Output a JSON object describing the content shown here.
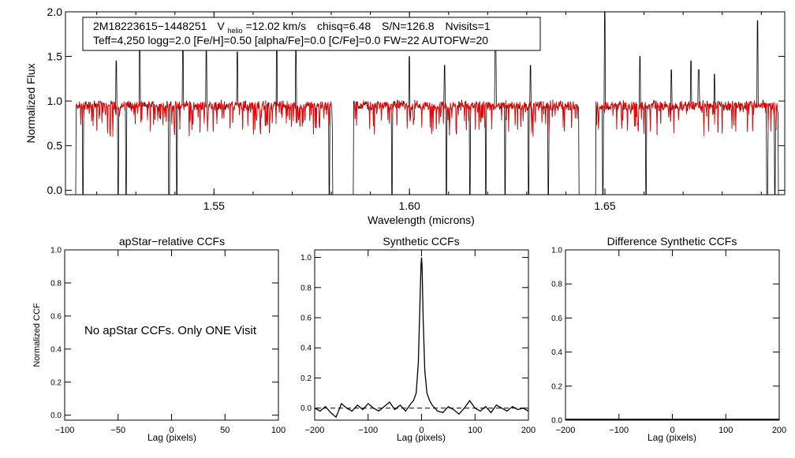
{
  "chart_data": [
    {
      "type": "line",
      "id": "spectrum",
      "xlabel": "Wavelength (microns)",
      "ylabel": "Normalized Flux",
      "xlim": [
        1.512,
        1.696
      ],
      "ylim": [
        -0.05,
        2.0
      ],
      "x_ticks": [
        1.55,
        1.6,
        1.65
      ],
      "x_tick_labels": [
        "1.55",
        "1.60",
        "1.65"
      ],
      "y_ticks": [
        0.0,
        0.5,
        1.0,
        1.5,
        2.0
      ],
      "y_tick_labels": [
        "0.0",
        "0.5",
        "1.0",
        "1.5",
        "2.0"
      ],
      "legend": {
        "star_id": "2M18223615−1448251",
        "v_label": "V",
        "v_sub": "helio",
        "v_value": "=12.02 km/s",
        "chisq": "chisq=6.48",
        "snr": "S/N=126.8",
        "nvisits": "Nvisits=1",
        "line2": "Teff=4,250 logg=2.0 [Fe/H]=0.50 [alpha/Fe]=0.0 [C/Fe]=0.0 FW=22 AUTOFW=20"
      },
      "chips": [
        [
          1.5145,
          1.5805
        ],
        [
          1.5855,
          1.6435
        ],
        [
          1.6475,
          1.6945
        ]
      ],
      "continuum": 0.95,
      "spikes_up": [
        1.525,
        1.531,
        1.542,
        1.548,
        1.556,
        1.566,
        1.571,
        1.6,
        1.609,
        1.622,
        1.631,
        1.65,
        1.659,
        1.667,
        1.672,
        1.674,
        1.678,
        1.689
      ],
      "spike_heights": [
        1.45,
        1.9,
        1.7,
        1.6,
        1.55,
        1.85,
        1.6,
        1.5,
        1.4,
        1.7,
        1.4,
        2.0,
        1.5,
        1.35,
        1.45,
        1.35,
        1.3,
        1.9
      ],
      "dips": [
        1.5165,
        1.5255,
        1.5275,
        1.5385,
        1.5405,
        1.5795,
        1.5955,
        1.6095,
        1.6155,
        1.6195,
        1.6245,
        1.6305,
        1.6355,
        1.6495,
        1.6605,
        1.6915,
        1.6935
      ],
      "series": [
        {
          "name": "observed",
          "color": "#000000"
        },
        {
          "name": "synthetic",
          "color": "#ff0000"
        }
      ]
    },
    {
      "type": "line",
      "id": "apstar-ccf",
      "title": "apStar−relative CCFs",
      "xlabel": "Lag (pixels)",
      "ylabel": "Normalized CCF",
      "xlim": [
        -100,
        100
      ],
      "ylim": [
        -0.03,
        1.0
      ],
      "x_ticks": [
        -100,
        -50,
        0,
        50,
        100
      ],
      "x_tick_labels": [
        "−100",
        "−50",
        "0",
        "50",
        "100"
      ],
      "y_ticks": [
        0.0,
        0.2,
        0.4,
        0.6,
        0.8,
        1.0
      ],
      "y_tick_labels": [
        "0.0",
        "0.2",
        "0.4",
        "0.6",
        "0.8",
        "1.0"
      ],
      "annotation": "No apStar CCFs.  Only ONE Visit"
    },
    {
      "type": "line",
      "id": "synthetic-ccf",
      "title": "Synthetic CCFs",
      "xlabel": "Lag (pixels)",
      "xlim": [
        -200,
        200
      ],
      "ylim": [
        -0.08,
        1.05
      ],
      "x_ticks": [
        -200,
        -100,
        0,
        100,
        200
      ],
      "x_tick_labels": [
        "−200",
        "−100",
        "0",
        "100",
        "200"
      ],
      "y_ticks": [
        0.0,
        0.2,
        0.4,
        0.6,
        0.8,
        1.0
      ],
      "y_tick_labels": [
        "0.0",
        "0.2",
        "0.4",
        "0.6",
        "0.8",
        "1.0"
      ],
      "baseline": 0.0,
      "x": [
        -200,
        -190,
        -180,
        -170,
        -160,
        -150,
        -140,
        -130,
        -120,
        -110,
        -100,
        -90,
        -80,
        -70,
        -60,
        -50,
        -40,
        -30,
        -20,
        -15,
        -10,
        -6,
        -3,
        -1,
        0,
        1,
        3,
        6,
        10,
        15,
        20,
        30,
        40,
        50,
        60,
        70,
        80,
        90,
        100,
        110,
        120,
        130,
        140,
        150,
        160,
        170,
        180,
        190,
        200
      ],
      "y": [
        0.0,
        -0.02,
        0.01,
        -0.03,
        -0.06,
        0.03,
        0.0,
        -0.02,
        0.02,
        -0.01,
        0.03,
        0.0,
        -0.02,
        0.01,
        0.04,
        -0.01,
        0.02,
        -0.02,
        0.03,
        0.05,
        0.1,
        0.3,
        0.7,
        0.95,
        1.0,
        0.93,
        0.6,
        0.25,
        0.1,
        0.05,
        0.02,
        -0.02,
        -0.03,
        0.01,
        -0.01,
        -0.04,
        0.0,
        0.05,
        0.0,
        -0.02,
        0.01,
        -0.03,
        0.02,
        0.0,
        -0.02,
        0.01,
        -0.01,
        0.0,
        -0.02
      ]
    },
    {
      "type": "line",
      "id": "difference-ccf",
      "title": "Difference Synthetic CCFs",
      "xlabel": "Lag (pixels)",
      "xlim": [
        -200,
        200
      ],
      "ylim": [
        0.0,
        1.0
      ],
      "x_ticks": [
        -200,
        -100,
        0,
        100,
        200
      ],
      "x_tick_labels": [
        "−200",
        "−100",
        "0",
        "100",
        "200"
      ],
      "y_ticks": [
        0.0,
        0.2,
        0.4,
        0.6,
        0.8,
        1.0
      ],
      "y_tick_labels": [
        "0.0",
        "0.2",
        "0.4",
        "0.6",
        "0.8",
        "1.0"
      ]
    }
  ]
}
